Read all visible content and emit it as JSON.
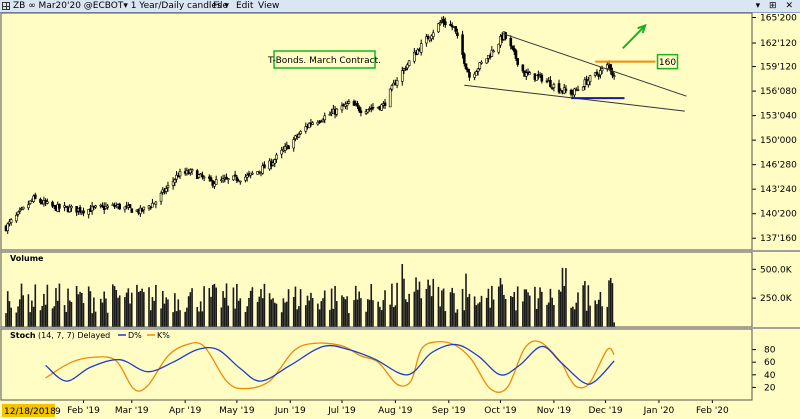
{
  "toolbar": {
    "symbol_text": "ZB ∞ Mar20'20 @ECBOT▾  1 Year/Daily candles ▾",
    "menu": [
      "File",
      "Edit",
      "View"
    ],
    "window_buttons": "▾ ⊞ ✕"
  },
  "chart_data": [
    {
      "type": "candlestick",
      "name": "price",
      "annotation_text": "T-Bonds. March Contract.",
      "target_label": "160",
      "y_ticks": [
        "165'200",
        "162'120",
        "159'120",
        "156'080",
        "153'040",
        "150'000",
        "146'280",
        "143'240",
        "140'200",
        "137'160"
      ],
      "ylim": [
        136,
        166.2
      ],
      "x_ticks": [
        "Feb '19",
        "Mar '19",
        "Apr '19",
        "May '19",
        "Jun '19",
        "Jul '19",
        "Aug '19",
        "Sep '19",
        "Oct '19",
        "Nov '19",
        "Dec '19",
        "Jan '20",
        "Feb '20"
      ],
      "x_start_label": "12/18/2018",
      "x_start_suffix": "9",
      "close_anchors": [
        [
          "2018-12-18",
          138.9
        ],
        [
          "2019-01-03",
          142.5
        ],
        [
          "2019-01-15",
          141.4
        ],
        [
          "2019-02-01",
          141.1
        ],
        [
          "2019-02-20",
          141.6
        ],
        [
          "2019-03-06",
          140.9
        ],
        [
          "2019-03-15",
          142.2
        ],
        [
          "2019-03-28",
          145.6
        ],
        [
          "2019-04-05",
          145.9
        ],
        [
          "2019-04-16",
          144.6
        ],
        [
          "2019-04-26",
          144.9
        ],
        [
          "2019-05-08",
          145.4
        ],
        [
          "2019-05-20",
          146.9
        ],
        [
          "2019-05-31",
          149.3
        ],
        [
          "2019-06-12",
          152.1
        ],
        [
          "2019-06-25",
          153.4
        ],
        [
          "2019-07-05",
          154.6
        ],
        [
          "2019-07-12",
          153.9
        ],
        [
          "2019-07-25",
          154.4
        ],
        [
          "2019-08-02",
          157.8
        ],
        [
          "2019-08-13",
          161.2
        ],
        [
          "2019-08-23",
          163.9
        ],
        [
          "2019-08-28",
          165.2
        ],
        [
          "2019-09-04",
          164.3
        ],
        [
          "2019-09-13",
          158.1
        ],
        [
          "2019-09-24",
          160.7
        ],
        [
          "2019-10-03",
          163.4
        ],
        [
          "2019-10-15",
          158.4
        ],
        [
          "2019-10-25",
          157.9
        ],
        [
          "2019-11-05",
          156.4
        ],
        [
          "2019-11-12",
          156.0
        ],
        [
          "2019-11-20",
          157.5
        ],
        [
          "2019-11-29",
          158.9
        ],
        [
          "2019-12-03",
          159.6
        ],
        [
          "2019-12-06",
          158.0
        ]
      ],
      "lines": [
        {
          "name": "upper-wedge-line",
          "color": "#333333",
          "points": [
            [
              "2019-10-02",
              163.6
            ],
            [
              "2020-01-17",
              155.6
            ]
          ]
        },
        {
          "name": "lower-wedge-line",
          "color": "#333333",
          "points": [
            [
              "2019-09-10",
              157.0
            ],
            [
              "2020-01-16",
              153.7
            ]
          ]
        },
        {
          "name": "resistance-160-line",
          "color": "#f28c00",
          "points": [
            [
              "2019-11-25",
              160.0
            ],
            [
              "2019-12-30",
              160.0
            ]
          ]
        },
        {
          "name": "support-line",
          "color": "#1a1a9e",
          "points": [
            [
              "2019-11-11",
              155.35
            ],
            [
              "2019-12-12",
              155.35
            ]
          ]
        },
        {
          "name": "target-arrow",
          "color": "#17b321",
          "points": [
            [
              "2019-12-11",
              161.7
            ],
            [
              "2019-12-24",
              164.6
            ]
          ]
        }
      ]
    },
    {
      "type": "bar",
      "name": "volume",
      "title": "Volume",
      "y_ticks": [
        "500.0K",
        "250.0K"
      ],
      "ylim": [
        0,
        650000
      ],
      "baseline_level": 250000,
      "peak_dates": [
        "2019-08-05",
        "2019-08-14",
        "2019-08-23",
        "2019-09-11",
        "2019-10-02",
        "2019-11-07",
        "2019-11-21",
        "2019-12-05"
      ]
    },
    {
      "type": "line",
      "name": "stochastic",
      "title": "Stoch",
      "params": "(14, 7, 7) Delayed",
      "series_labels": [
        "D%",
        "K%"
      ],
      "colors": {
        "D": "#1a3fc8",
        "K": "#f08a00"
      },
      "y_ticks": [
        "80",
        "60",
        "40",
        "20"
      ],
      "ylim": [
        0,
        100
      ],
      "K": [
        [
          "2019-01-10",
          35
        ],
        [
          "2019-01-25",
          60
        ],
        [
          "2019-02-08",
          68
        ],
        [
          "2019-02-20",
          62
        ],
        [
          "2019-03-02",
          18
        ],
        [
          "2019-03-10",
          22
        ],
        [
          "2019-03-22",
          70
        ],
        [
          "2019-04-02",
          88
        ],
        [
          "2019-04-12",
          85
        ],
        [
          "2019-04-25",
          30
        ],
        [
          "2019-05-05",
          18
        ],
        [
          "2019-05-20",
          30
        ],
        [
          "2019-06-03",
          78
        ],
        [
          "2019-06-15",
          90
        ],
        [
          "2019-07-01",
          86
        ],
        [
          "2019-07-12",
          70
        ],
        [
          "2019-07-22",
          60
        ],
        [
          "2019-08-02",
          25
        ],
        [
          "2019-08-10",
          30
        ],
        [
          "2019-08-16",
          80
        ],
        [
          "2019-08-24",
          92
        ],
        [
          "2019-09-04",
          88
        ],
        [
          "2019-09-14",
          65
        ],
        [
          "2019-09-25",
          18
        ],
        [
          "2019-10-05",
          20
        ],
        [
          "2019-10-15",
          82
        ],
        [
          "2019-10-24",
          92
        ],
        [
          "2019-11-05",
          60
        ],
        [
          "2019-11-10",
          35
        ],
        [
          "2019-11-15",
          20
        ],
        [
          "2019-11-22",
          28
        ],
        [
          "2019-12-02",
          80
        ],
        [
          "2019-12-06",
          72
        ]
      ],
      "D": [
        [
          "2019-01-10",
          55
        ],
        [
          "2019-01-22",
          30
        ],
        [
          "2019-02-05",
          52
        ],
        [
          "2019-02-22",
          64
        ],
        [
          "2019-03-10",
          45
        ],
        [
          "2019-03-25",
          60
        ],
        [
          "2019-04-08",
          80
        ],
        [
          "2019-04-20",
          80
        ],
        [
          "2019-05-03",
          50
        ],
        [
          "2019-05-15",
          30
        ],
        [
          "2019-06-01",
          55
        ],
        [
          "2019-06-20",
          85
        ],
        [
          "2019-07-05",
          80
        ],
        [
          "2019-07-20",
          65
        ],
        [
          "2019-08-08",
          40
        ],
        [
          "2019-08-22",
          75
        ],
        [
          "2019-09-05",
          88
        ],
        [
          "2019-09-18",
          70
        ],
        [
          "2019-10-01",
          40
        ],
        [
          "2019-10-12",
          55
        ],
        [
          "2019-10-25",
          85
        ],
        [
          "2019-11-05",
          60
        ],
        [
          "2019-11-18",
          28
        ],
        [
          "2019-11-25",
          30
        ],
        [
          "2019-12-06",
          62
        ]
      ]
    }
  ]
}
